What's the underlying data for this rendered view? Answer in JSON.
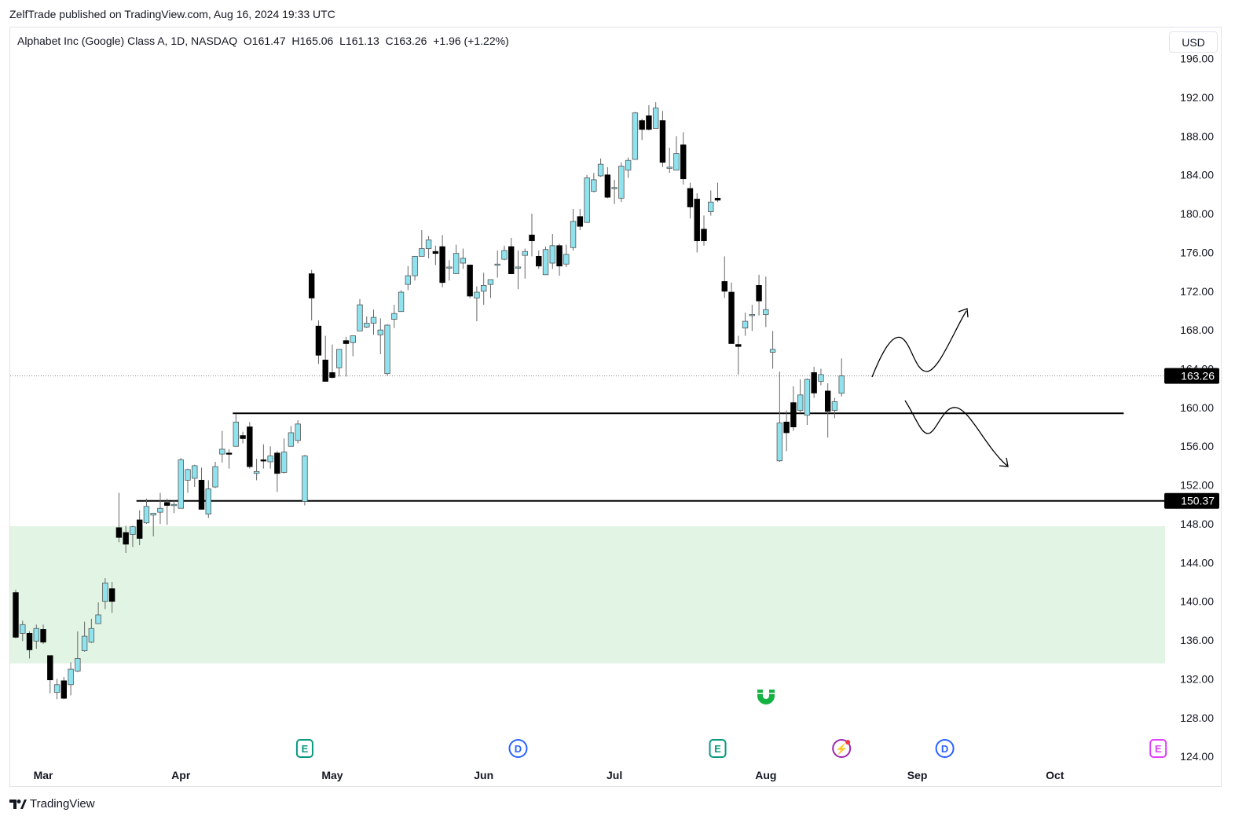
{
  "header": {
    "published": "ZelfTrade published on TradingView.com, Aug 16, 2024 19:33 UTC"
  },
  "legend": {
    "symbol": "Alphabet Inc (Google) Class A, 1D, NASDAQ",
    "open": "O161.47",
    "high": "H165.06",
    "low": "L161.13",
    "close": "C163.26",
    "change": "+1.96 (+1.22%)"
  },
  "currency_button": "USD",
  "footer": {
    "brand": "TradingView"
  },
  "colors": {
    "up": "#8fe3ef",
    "down": "#000000",
    "zone": "#e2f4e4",
    "event_e": "#089981",
    "event_d": "#2962ff",
    "event_split": "#9c27b0",
    "event_e_future": "#e040fb",
    "magnet": "#14b143"
  },
  "chart_data": {
    "type": "candlestick",
    "title": "Alphabet Inc (Google) Class A, 1D, NASDAQ",
    "ylim": [
      124,
      196
    ],
    "y_ticks": [
      "124.00",
      "128.00",
      "132.00",
      "136.00",
      "140.00",
      "144.00",
      "148.00",
      "152.00",
      "156.00",
      "160.00",
      "164.00",
      "168.00",
      "172.00",
      "176.00",
      "180.00",
      "184.00",
      "188.00",
      "192.00",
      "196.00"
    ],
    "x_ticks": [
      {
        "label": "Mar",
        "bar": 4
      },
      {
        "label": "Apr",
        "bar": 24
      },
      {
        "label": "May",
        "bar": 46
      },
      {
        "label": "Jun",
        "bar": 68
      },
      {
        "label": "Jul",
        "bar": 87
      },
      {
        "label": "Aug",
        "bar": 109
      },
      {
        "label": "Sep",
        "bar": 131
      },
      {
        "label": "Oct",
        "bar": 151
      }
    ],
    "ohlc_fields": [
      "open",
      "high",
      "low",
      "close"
    ],
    "candles": [
      [
        140.9,
        141.2,
        136.2,
        136.3
      ],
      [
        136.7,
        138.0,
        135.9,
        137.6
      ],
      [
        136.7,
        136.9,
        134.1,
        135.0
      ],
      [
        135.9,
        137.6,
        135.1,
        137.2
      ],
      [
        137.1,
        137.6,
        135.6,
        135.8
      ],
      [
        134.4,
        134.4,
        130.5,
        131.9
      ],
      [
        130.6,
        132.0,
        129.9,
        131.4
      ],
      [
        131.8,
        132.2,
        129.9,
        130.0
      ],
      [
        131.4,
        133.7,
        130.3,
        133.0
      ],
      [
        132.8,
        136.9,
        132.7,
        134.1
      ],
      [
        134.9,
        137.9,
        134.8,
        136.4
      ],
      [
        135.8,
        138.2,
        135.7,
        137.2
      ],
      [
        137.7,
        139.9,
        137.7,
        138.6
      ],
      [
        140.0,
        142.4,
        139.2,
        141.9
      ],
      [
        141.3,
        142.0,
        138.8,
        140.0
      ],
      [
        147.6,
        151.2,
        146.1,
        146.6
      ],
      [
        147.1,
        147.8,
        145.0,
        145.9
      ],
      [
        146.9,
        147.8,
        145.6,
        147.7
      ],
      [
        148.4,
        149.4,
        145.8,
        146.5
      ],
      [
        148.1,
        150.6,
        148.0,
        149.8
      ],
      [
        148.9,
        149.1,
        146.7,
        149.1
      ],
      [
        149.2,
        151.2,
        148.0,
        149.6
      ],
      [
        150.2,
        150.6,
        147.9,
        149.9
      ],
      [
        149.9,
        150.4,
        149.1,
        150.0
      ],
      [
        149.6,
        154.8,
        149.6,
        154.6
      ],
      [
        152.5,
        153.7,
        151.2,
        153.6
      ],
      [
        152.7,
        154.1,
        151.8,
        154.0
      ],
      [
        152.5,
        153.8,
        149.5,
        149.5
      ],
      [
        149.0,
        152.5,
        148.6,
        151.6
      ],
      [
        151.8,
        154.4,
        151.7,
        153.9
      ],
      [
        155.2,
        157.6,
        154.3,
        155.7
      ],
      [
        155.3,
        155.7,
        153.7,
        155.2
      ],
      [
        156.0,
        159.3,
        156.0,
        158.5
      ],
      [
        157.1,
        157.5,
        156.3,
        156.8
      ],
      [
        158.0,
        158.5,
        153.7,
        153.9
      ],
      [
        153.2,
        154.7,
        152.5,
        153.4
      ],
      [
        154.6,
        156.2,
        153.7,
        154.5
      ],
      [
        154.4,
        156.0,
        153.7,
        155.0
      ],
      [
        155.3,
        155.5,
        151.3,
        153.2
      ],
      [
        153.3,
        156.8,
        153.2,
        155.4
      ],
      [
        156.0,
        158.1,
        156.0,
        157.4
      ],
      [
        156.6,
        158.7,
        156.3,
        158.3
      ],
      [
        150.3,
        155.1,
        149.9,
        155.0
      ],
      [
        173.8,
        174.2,
        169.0,
        171.3
      ],
      [
        168.4,
        169.0,
        164.5,
        165.4
      ],
      [
        164.9,
        167.4,
        162.7,
        162.7
      ],
      [
        163.6,
        166.5,
        163.0,
        163.1
      ],
      [
        164.1,
        166.0,
        163.2,
        166.0
      ],
      [
        166.9,
        167.3,
        163.2,
        166.6
      ],
      [
        166.7,
        167.4,
        165.3,
        167.4
      ],
      [
        167.9,
        171.2,
        167.9,
        170.6
      ],
      [
        168.3,
        169.4,
        168.2,
        168.7
      ],
      [
        168.7,
        170.1,
        167.5,
        169.3
      ],
      [
        167.5,
        169.2,
        165.5,
        168.0
      ],
      [
        163.5,
        168.6,
        163.3,
        168.5
      ],
      [
        169.1,
        170.6,
        168.2,
        169.7
      ],
      [
        169.9,
        172.1,
        169.9,
        171.9
      ],
      [
        172.7,
        174.6,
        172.1,
        173.6
      ],
      [
        173.6,
        175.6,
        173.1,
        175.6
      ],
      [
        175.6,
        178.3,
        175.6,
        176.4
      ],
      [
        176.4,
        177.7,
        175.4,
        177.3
      ],
      [
        176.1,
        176.7,
        174.7,
        175.9
      ],
      [
        176.6,
        177.8,
        172.4,
        172.9
      ],
      [
        174.5,
        175.2,
        173.1,
        174.5
      ],
      [
        173.8,
        176.8,
        173.8,
        175.9
      ],
      [
        174.9,
        176.4,
        174.3,
        175.4
      ],
      [
        174.7,
        174.7,
        171.3,
        171.5
      ],
      [
        171.3,
        172.5,
        168.9,
        171.9
      ],
      [
        172.0,
        173.9,
        170.6,
        172.6
      ],
      [
        172.7,
        173.2,
        171.3,
        173.2
      ],
      [
        174.7,
        176.2,
        173.4,
        174.8
      ],
      [
        175.3,
        176.7,
        175.2,
        176.2
      ],
      [
        176.6,
        177.5,
        173.8,
        173.8
      ],
      [
        174.5,
        176.2,
        172.2,
        174.5
      ],
      [
        175.7,
        176.4,
        173.3,
        176.1
      ],
      [
        177.8,
        180.0,
        175.6,
        177.2
      ],
      [
        175.6,
        176.2,
        174.3,
        174.6
      ],
      [
        173.7,
        176.6,
        173.7,
        176.3
      ],
      [
        174.9,
        177.9,
        174.3,
        176.7
      ],
      [
        176.7,
        176.9,
        173.6,
        174.6
      ],
      [
        174.8,
        176.8,
        174.5,
        175.8
      ],
      [
        176.5,
        180.5,
        176.2,
        179.2
      ],
      [
        179.7,
        180.5,
        178.3,
        178.7
      ],
      [
        179.1,
        184.0,
        179.1,
        183.7
      ],
      [
        182.3,
        184.2,
        182.2,
        183.5
      ],
      [
        183.9,
        185.7,
        183.8,
        185.1
      ],
      [
        184.0,
        184.8,
        181.6,
        181.7
      ],
      [
        182.7,
        183.5,
        181.0,
        182.7
      ],
      [
        181.6,
        185.3,
        181.2,
        184.9
      ],
      [
        184.5,
        185.8,
        183.7,
        185.5
      ],
      [
        185.6,
        190.5,
        185.6,
        190.4
      ],
      [
        189.6,
        189.8,
        187.6,
        188.7
      ],
      [
        190.1,
        191.2,
        188.6,
        188.7
      ],
      [
        188.8,
        191.5,
        188.8,
        190.9
      ],
      [
        189.6,
        190.6,
        184.8,
        185.3
      ],
      [
        184.8,
        186.8,
        184.2,
        184.8
      ],
      [
        184.5,
        188.0,
        184.5,
        186.2
      ],
      [
        187.1,
        188.4,
        183.0,
        183.6
      ],
      [
        182.6,
        183.2,
        179.5,
        180.7
      ],
      [
        181.5,
        182.1,
        176.0,
        177.2
      ],
      [
        178.4,
        179.8,
        176.7,
        177.2
      ],
      [
        180.2,
        182.4,
        179.8,
        181.2
      ],
      [
        181.6,
        183.2,
        181.2,
        181.4
      ],
      [
        173.0,
        175.6,
        171.3,
        172.0
      ],
      [
        171.9,
        172.9,
        166.6,
        166.6
      ],
      [
        166.5,
        167.4,
        163.4,
        166.3
      ],
      [
        168.2,
        169.8,
        167.4,
        168.9
      ],
      [
        169.6,
        170.6,
        167.9,
        169.6
      ],
      [
        172.6,
        173.7,
        169.5,
        171.0
      ],
      [
        169.6,
        173.5,
        168.3,
        170.1
      ],
      [
        165.7,
        167.9,
        164.0,
        166.0
      ],
      [
        154.5,
        163.7,
        154.4,
        158.4
      ],
      [
        158.5,
        159.7,
        155.5,
        157.4
      ],
      [
        160.5,
        162.2,
        157.6,
        158.0
      ],
      [
        159.7,
        162.9,
        159.4,
        161.3
      ],
      [
        159.2,
        163.0,
        158.2,
        162.9
      ],
      [
        163.6,
        164.2,
        161.0,
        161.5
      ],
      [
        162.7,
        164.0,
        162.3,
        163.4
      ],
      [
        161.7,
        162.5,
        156.9,
        159.6
      ],
      [
        159.7,
        161.0,
        158.9,
        160.6
      ],
      [
        161.47,
        165.06,
        161.13,
        163.26
      ]
    ],
    "last_price": {
      "value": 163.26,
      "label": "163.26"
    },
    "horizontal_levels": [
      {
        "value": 159.4,
        "from_bar": 32,
        "to_bar": 161
      },
      {
        "value": 150.37,
        "from_bar": 18,
        "to_bar": null,
        "label": "150.37"
      }
    ],
    "zone": {
      "from": 133.6,
      "to": 147.75
    },
    "events": [
      {
        "type": "earnings",
        "letter": "E",
        "bar": 42
      },
      {
        "type": "dividend",
        "letter": "D",
        "bar": 73
      },
      {
        "type": "earnings",
        "letter": "E",
        "bar": 102
      },
      {
        "type": "split",
        "letter": "⚡",
        "bar": 120
      },
      {
        "type": "dividend",
        "letter": "D",
        "bar": 135
      },
      {
        "type": "earnings-future",
        "letter": "E",
        "bar": 166
      }
    ]
  }
}
